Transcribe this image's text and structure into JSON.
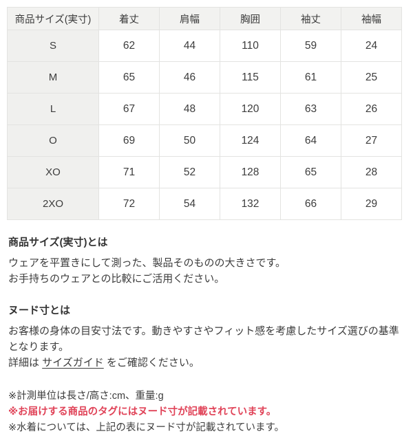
{
  "colors": {
    "note_red": "#e04358",
    "table_header_bg": "#f2f2f0",
    "table_rowhead_bg": "#f0f0ee",
    "table_border": "#e3e3e1",
    "text": "#3c3c3c"
  },
  "size_table": {
    "headers": [
      "商品サイズ(実寸)",
      "着丈",
      "肩幅",
      "胸囲",
      "袖丈",
      "袖幅"
    ],
    "rows": [
      {
        "size": "S",
        "values": [
          "62",
          "44",
          "110",
          "59",
          "24"
        ]
      },
      {
        "size": "M",
        "values": [
          "65",
          "46",
          "115",
          "61",
          "25"
        ]
      },
      {
        "size": "L",
        "values": [
          "67",
          "48",
          "120",
          "63",
          "26"
        ]
      },
      {
        "size": "O",
        "values": [
          "69",
          "50",
          "124",
          "64",
          "27"
        ]
      },
      {
        "size": "XO",
        "values": [
          "71",
          "52",
          "128",
          "65",
          "28"
        ]
      },
      {
        "size": "2XO",
        "values": [
          "72",
          "54",
          "132",
          "66",
          "29"
        ]
      }
    ]
  },
  "sections": {
    "actual_size": {
      "heading": "商品サイズ(実寸)とは",
      "line1": "ウェアを平置きにして測った、製品そのものの大きさです。",
      "line2": "お手持ちのウェアとの比較にご活用ください。"
    },
    "nude_size": {
      "heading": "ヌード寸とは",
      "line1": "お客様の身体の目安寸法です。動きやすさやフィット感を考慮したサイズ選びの基準となります。",
      "detail_prefix": "詳細は ",
      "link_label": "サイズガイド",
      "detail_suffix": " をご確認ください。"
    }
  },
  "notes": [
    {
      "text": "※計測単位は長さ/高さ:cm、重量:g",
      "style": "default"
    },
    {
      "text": "※お届けする商品のタグにはヌード寸が記載されています。",
      "style": "red"
    },
    {
      "text": "※水着については、上記の表にヌード寸が記載されています。",
      "style": "default"
    }
  ]
}
